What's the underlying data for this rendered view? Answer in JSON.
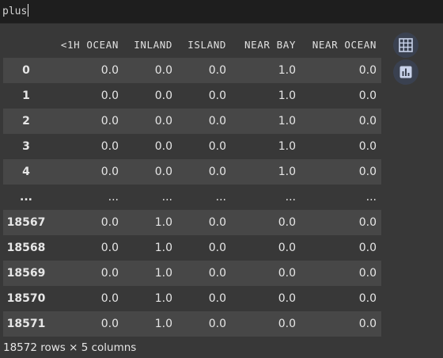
{
  "input": {
    "value": "plus"
  },
  "table": {
    "columns": [
      "<1H OCEAN",
      "INLAND",
      "ISLAND",
      "NEAR BAY",
      "NEAR OCEAN"
    ],
    "rows": [
      {
        "index": "0",
        "cells": [
          "0.0",
          "0.0",
          "0.0",
          "1.0",
          "0.0"
        ]
      },
      {
        "index": "1",
        "cells": [
          "0.0",
          "0.0",
          "0.0",
          "1.0",
          "0.0"
        ]
      },
      {
        "index": "2",
        "cells": [
          "0.0",
          "0.0",
          "0.0",
          "1.0",
          "0.0"
        ]
      },
      {
        "index": "3",
        "cells": [
          "0.0",
          "0.0",
          "0.0",
          "1.0",
          "0.0"
        ]
      },
      {
        "index": "4",
        "cells": [
          "0.0",
          "0.0",
          "0.0",
          "1.0",
          "0.0"
        ]
      },
      {
        "index": "...",
        "cells": [
          "...",
          "...",
          "...",
          "...",
          "..."
        ]
      },
      {
        "index": "18567",
        "cells": [
          "0.0",
          "1.0",
          "0.0",
          "0.0",
          "0.0"
        ]
      },
      {
        "index": "18568",
        "cells": [
          "0.0",
          "1.0",
          "0.0",
          "0.0",
          "0.0"
        ]
      },
      {
        "index": "18569",
        "cells": [
          "0.0",
          "1.0",
          "0.0",
          "0.0",
          "0.0"
        ]
      },
      {
        "index": "18570",
        "cells": [
          "0.0",
          "1.0",
          "0.0",
          "0.0",
          "0.0"
        ]
      },
      {
        "index": "18571",
        "cells": [
          "0.0",
          "1.0",
          "0.0",
          "0.0",
          "0.0"
        ]
      }
    ]
  },
  "side_buttons": {
    "table_icon": "table-grid-icon",
    "chart_icon": "bar-chart-icon",
    "icon_color": "#c9d3ea",
    "button_bg": "#3a4150"
  },
  "footer": {
    "summary": "18572 rows × 5 columns"
  }
}
